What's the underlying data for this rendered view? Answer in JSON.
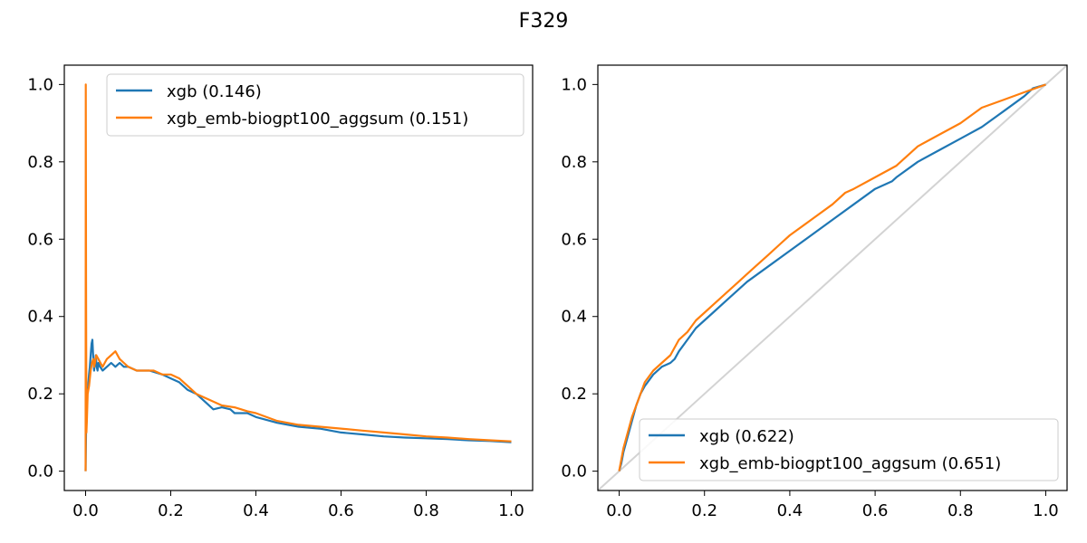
{
  "figure": {
    "title": "F329",
    "colors": {
      "xgb": "#1f77b4",
      "xgb_emb": "#ff7f0e",
      "diagonal": "#d3d3d3"
    }
  },
  "chart_data": [
    {
      "type": "line",
      "xlabel": "",
      "ylabel": "",
      "xlim": [
        -0.05,
        1.05
      ],
      "ylim": [
        -0.05,
        1.05
      ],
      "xticks": [
        "0.0",
        "0.2",
        "0.4",
        "0.6",
        "0.8",
        "1.0"
      ],
      "yticks": [
        "0.0",
        "0.2",
        "0.4",
        "0.6",
        "0.8",
        "1.0"
      ],
      "grid": false,
      "legend_position": "upper-right",
      "series": [
        {
          "name": "xgb (0.146)",
          "color": "#1f77b4",
          "x": [
            0.0,
            0.001,
            0.002,
            0.004,
            0.006,
            0.008,
            0.01,
            0.012,
            0.014,
            0.016,
            0.018,
            0.02,
            0.022,
            0.024,
            0.026,
            0.028,
            0.03,
            0.034,
            0.04,
            0.05,
            0.06,
            0.07,
            0.08,
            0.09,
            0.1,
            0.12,
            0.15,
            0.18,
            0.2,
            0.22,
            0.24,
            0.26,
            0.28,
            0.3,
            0.32,
            0.34,
            0.35,
            0.38,
            0.4,
            0.45,
            0.5,
            0.55,
            0.6,
            0.65,
            0.7,
            0.75,
            0.8,
            0.85,
            0.9,
            0.95,
            1.0
          ],
          "y": [
            0.0,
            0.1,
            0.12,
            0.2,
            0.22,
            0.25,
            0.27,
            0.3,
            0.33,
            0.34,
            0.29,
            0.26,
            0.28,
            0.3,
            0.27,
            0.26,
            0.28,
            0.27,
            0.26,
            0.27,
            0.28,
            0.27,
            0.28,
            0.27,
            0.27,
            0.26,
            0.26,
            0.25,
            0.24,
            0.23,
            0.21,
            0.2,
            0.18,
            0.16,
            0.165,
            0.16,
            0.15,
            0.15,
            0.14,
            0.125,
            0.115,
            0.11,
            0.1,
            0.095,
            0.09,
            0.087,
            0.085,
            0.083,
            0.08,
            0.078,
            0.075
          ]
        },
        {
          "name": "xgb_emb-biogpt100_aggsum (0.151)",
          "color": "#ff7f0e",
          "x": [
            0.0,
            0.0005,
            0.001,
            0.002,
            0.003,
            0.005,
            0.008,
            0.01,
            0.012,
            0.015,
            0.018,
            0.02,
            0.022,
            0.025,
            0.03,
            0.035,
            0.04,
            0.045,
            0.05,
            0.06,
            0.07,
            0.08,
            0.09,
            0.1,
            0.12,
            0.14,
            0.16,
            0.18,
            0.2,
            0.22,
            0.24,
            0.26,
            0.28,
            0.3,
            0.32,
            0.35,
            0.38,
            0.4,
            0.45,
            0.5,
            0.55,
            0.6,
            0.65,
            0.7,
            0.75,
            0.8,
            0.85,
            0.9,
            0.95,
            1.0
          ],
          "y": [
            0.0,
            1.0,
            0.5,
            0.1,
            0.13,
            0.2,
            0.22,
            0.24,
            0.26,
            0.28,
            0.29,
            0.27,
            0.28,
            0.3,
            0.29,
            0.28,
            0.27,
            0.28,
            0.29,
            0.3,
            0.31,
            0.29,
            0.28,
            0.27,
            0.26,
            0.26,
            0.26,
            0.25,
            0.25,
            0.24,
            0.22,
            0.2,
            0.19,
            0.18,
            0.17,
            0.165,
            0.155,
            0.15,
            0.13,
            0.12,
            0.115,
            0.11,
            0.105,
            0.1,
            0.095,
            0.09,
            0.087,
            0.083,
            0.08,
            0.077
          ]
        }
      ]
    },
    {
      "type": "line",
      "xlabel": "",
      "ylabel": "",
      "xlim": [
        -0.05,
        1.05
      ],
      "ylim": [
        -0.05,
        1.05
      ],
      "xticks": [
        "0.0",
        "0.2",
        "0.4",
        "0.6",
        "0.8",
        "1.0"
      ],
      "yticks": [
        "0.0",
        "0.2",
        "0.4",
        "0.6",
        "0.8",
        "1.0"
      ],
      "grid": false,
      "legend_position": "lower-right",
      "reference_line": {
        "x": [
          -0.05,
          1.05
        ],
        "y": [
          -0.05,
          1.05
        ],
        "color": "#d3d3d3"
      },
      "series": [
        {
          "name": "xgb (0.622)",
          "color": "#1f77b4",
          "x": [
            0.0,
            0.005,
            0.01,
            0.02,
            0.03,
            0.04,
            0.05,
            0.06,
            0.08,
            0.1,
            0.12,
            0.13,
            0.14,
            0.16,
            0.18,
            0.2,
            0.22,
            0.25,
            0.28,
            0.3,
            0.35,
            0.4,
            0.45,
            0.5,
            0.55,
            0.6,
            0.64,
            0.65,
            0.7,
            0.75,
            0.8,
            0.85,
            0.9,
            0.95,
            0.97,
            1.0
          ],
          "y": [
            0.0,
            0.02,
            0.05,
            0.09,
            0.13,
            0.17,
            0.2,
            0.22,
            0.25,
            0.27,
            0.28,
            0.29,
            0.31,
            0.34,
            0.37,
            0.39,
            0.41,
            0.44,
            0.47,
            0.49,
            0.53,
            0.57,
            0.61,
            0.65,
            0.69,
            0.73,
            0.75,
            0.76,
            0.8,
            0.83,
            0.86,
            0.89,
            0.93,
            0.97,
            0.99,
            1.0
          ]
        },
        {
          "name": "xgb_emb-biogpt100_aggsum (0.651)",
          "color": "#ff7f0e",
          "x": [
            0.0,
            0.005,
            0.01,
            0.02,
            0.03,
            0.04,
            0.05,
            0.06,
            0.08,
            0.1,
            0.12,
            0.14,
            0.16,
            0.18,
            0.2,
            0.22,
            0.25,
            0.28,
            0.3,
            0.32,
            0.35,
            0.38,
            0.4,
            0.45,
            0.5,
            0.53,
            0.55,
            0.6,
            0.65,
            0.7,
            0.75,
            0.8,
            0.85,
            0.9,
            0.95,
            1.0
          ],
          "y": [
            0.0,
            0.03,
            0.06,
            0.1,
            0.14,
            0.17,
            0.2,
            0.23,
            0.26,
            0.28,
            0.3,
            0.34,
            0.36,
            0.39,
            0.41,
            0.43,
            0.46,
            0.49,
            0.51,
            0.53,
            0.56,
            0.59,
            0.61,
            0.65,
            0.69,
            0.72,
            0.73,
            0.76,
            0.79,
            0.84,
            0.87,
            0.9,
            0.94,
            0.96,
            0.98,
            1.0
          ]
        }
      ]
    }
  ]
}
